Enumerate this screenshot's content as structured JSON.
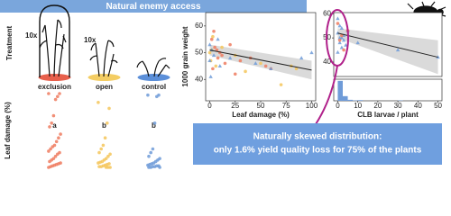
{
  "header": {
    "title": "Natural enemy access"
  },
  "treatment_label": "Treatment",
  "plant_labels": [
    "10x",
    "10x"
  ],
  "callout": {
    "lines": [
      "Naturally skewed distribution:",
      "only 1.6% yield quality loss for 75% of the plants"
    ]
  },
  "chart_data": [
    {
      "type": "strip",
      "ylabel": "Leaf damage (%)",
      "categories": [
        "exclusion",
        "open",
        "control"
      ],
      "colors": [
        "#e8604c",
        "#f4cd63",
        "#5b8fd9"
      ],
      "ylim": [
        0,
        100
      ],
      "annotations": [
        "a",
        "b",
        "b"
      ],
      "series": [
        {
          "color": "#ef7b5f",
          "values": [
            100,
            100,
            96,
            92,
            70,
            60,
            55,
            45,
            40,
            35,
            30,
            28,
            25,
            22,
            20,
            18,
            15,
            12,
            10,
            8,
            6,
            5,
            4,
            3,
            2,
            1,
            0
          ]
        },
        {
          "color": "#f5c65a",
          "values": [
            88,
            80,
            60,
            40,
            30,
            25,
            20,
            18,
            15,
            12,
            10,
            8,
            7,
            6,
            5,
            4,
            3,
            2,
            1,
            1,
            0,
            0,
            0
          ]
        },
        {
          "color": "#6f9bd8",
          "values": [
            98,
            98,
            96,
            60,
            25,
            20,
            15,
            12,
            10,
            8,
            6,
            5,
            4,
            3,
            2,
            2,
            1,
            1,
            0,
            0,
            0
          ]
        }
      ]
    },
    {
      "type": "scatter",
      "ylabel": "1000 grain weight",
      "xlabel": "Leaf damage (%)",
      "xlim": [
        -4,
        104
      ],
      "ylim": [
        32,
        65
      ],
      "xticks": [
        0,
        25,
        50,
        75,
        100
      ],
      "yticks": [
        40,
        50,
        60
      ],
      "series": [
        {
          "color": "#ef7b5f",
          "marker": "circle",
          "x": [
            2,
            5,
            8,
            3,
            10,
            15,
            20,
            30,
            25,
            40,
            55,
            60,
            4,
            12,
            7
          ],
          "values": [
            55,
            52,
            48,
            44,
            50,
            46,
            53,
            47,
            42,
            48,
            45,
            44,
            58,
            49,
            51
          ]
        },
        {
          "color": "#f5c65a",
          "marker": "circle",
          "x": [
            0,
            1,
            3,
            6,
            12,
            25,
            35,
            50,
            70,
            80,
            85,
            2
          ],
          "values": [
            50,
            47,
            56,
            45,
            52,
            49,
            43,
            46,
            38,
            45,
            44,
            51
          ]
        },
        {
          "color": "#6f9bd8",
          "marker": "triangle",
          "x": [
            0,
            0,
            2,
            4,
            8,
            10,
            20,
            45,
            60,
            90,
            100,
            1
          ],
          "values": [
            53,
            47,
            51,
            49,
            55,
            45,
            48,
            46,
            44,
            48,
            50,
            41
          ]
        }
      ],
      "trend": {
        "x": [
          0,
          100
        ],
        "values": [
          51,
          43.5
        ],
        "upper": [
          53,
          47
        ],
        "lower": [
          49,
          40
        ]
      }
    },
    {
      "type": "scatter",
      "xlim": [
        -2,
        52
      ],
      "ylim": [
        34,
        60.5
      ],
      "yticks": [
        40,
        50,
        60
      ],
      "series": [
        {
          "color": "#6f9bd8",
          "marker": "triangle",
          "x": [
            0,
            0,
            1,
            1,
            2,
            2,
            3,
            3,
            4,
            5,
            0,
            1,
            2,
            10,
            30,
            50
          ],
          "values": [
            58,
            52,
            50,
            48,
            54,
            46,
            51,
            49,
            47,
            53,
            44,
            55,
            50,
            48,
            45,
            42
          ]
        },
        {
          "color": "#ef7b5f",
          "marker": "circle",
          "x": [
            0,
            1,
            2,
            3,
            5
          ],
          "values": [
            56,
            49,
            51,
            45,
            53
          ]
        }
      ],
      "trend": {
        "x": [
          0,
          50
        ],
        "values": [
          52,
          42
        ],
        "upper": [
          54,
          49
        ],
        "lower": [
          50,
          35
        ]
      }
    },
    {
      "type": "histogram",
      "xlabel": "CLB larvae / plant",
      "color": "#6f9bd8",
      "bins": [
        0,
        2.5,
        5,
        7.5,
        10,
        12.5,
        15,
        17.5,
        20,
        22.5,
        25,
        27.5,
        30,
        32.5,
        35,
        37.5,
        40,
        42.5,
        45,
        47.5,
        50
      ],
      "counts": [
        60,
        14,
        3,
        1,
        2,
        0,
        0,
        0,
        0,
        0,
        0,
        0,
        1,
        0,
        0,
        0,
        0,
        0,
        0,
        0
      ],
      "xlim": [
        -2,
        52
      ],
      "ylim": [
        0,
        65
      ],
      "xticks": [
        0,
        10,
        20,
        30,
        40,
        50
      ]
    }
  ]
}
